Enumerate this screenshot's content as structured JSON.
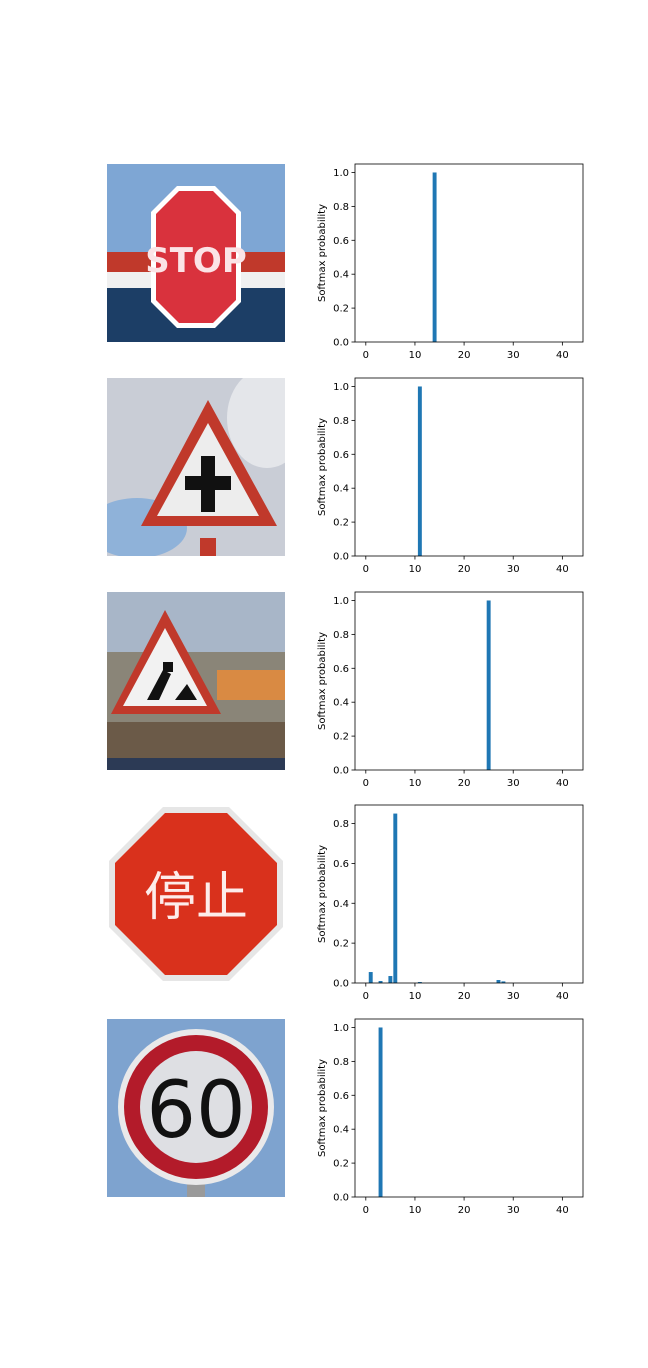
{
  "colors": {
    "bar": "#1f77b4",
    "axis": "#000000"
  },
  "images": [
    {
      "icon": "stop-sign-image"
    },
    {
      "icon": "right-of-way-intersection-sign-image"
    },
    {
      "icon": "road-work-sign-image"
    },
    {
      "icon": "japanese-stop-sign-image",
      "sign_text": "停止"
    },
    {
      "icon": "speed-limit-60-sign-image",
      "sign_text": "60"
    }
  ],
  "chart_data": [
    {
      "type": "bar",
      "ylabel": "Softmax probability",
      "xlim": [
        -2.2,
        44.2
      ],
      "xticks": [
        0,
        10,
        20,
        30,
        40
      ],
      "ylim": [
        0,
        1.05
      ],
      "yticks": [
        "0.0",
        "0.2",
        "0.4",
        "0.6",
        "0.8",
        "1.0"
      ],
      "x": [
        14
      ],
      "values": [
        1.0
      ]
    },
    {
      "type": "bar",
      "ylabel": "Softmax probability",
      "xlim": [
        -2.2,
        44.2
      ],
      "xticks": [
        0,
        10,
        20,
        30,
        40
      ],
      "ylim": [
        0,
        1.05
      ],
      "yticks": [
        "0.0",
        "0.2",
        "0.4",
        "0.6",
        "0.8",
        "1.0"
      ],
      "x": [
        11
      ],
      "values": [
        1.0
      ]
    },
    {
      "type": "bar",
      "ylabel": "Softmax probability",
      "xlim": [
        -2.2,
        44.2
      ],
      "xticks": [
        0,
        10,
        20,
        30,
        40
      ],
      "ylim": [
        0,
        1.05
      ],
      "yticks": [
        "0.0",
        "0.2",
        "0.4",
        "0.6",
        "0.8",
        "1.0"
      ],
      "x": [
        25
      ],
      "values": [
        1.0
      ]
    },
    {
      "type": "bar",
      "ylabel": "Softmax probability",
      "xlim": [
        -2.2,
        44.2
      ],
      "xticks": [
        0,
        10,
        20,
        30,
        40
      ],
      "ylim": [
        0,
        0.893
      ],
      "yticks": [
        "0.0",
        "0.2",
        "0.4",
        "0.6",
        "0.8"
      ],
      "x": [
        1,
        3,
        5,
        6,
        11,
        27,
        28
      ],
      "values": [
        0.055,
        0.01,
        0.035,
        0.85,
        0.005,
        0.015,
        0.008
      ]
    },
    {
      "type": "bar",
      "ylabel": "Softmax probability",
      "xlim": [
        -2.2,
        44.2
      ],
      "xticks": [
        0,
        10,
        20,
        30,
        40
      ],
      "ylim": [
        0,
        1.05
      ],
      "yticks": [
        "0.0",
        "0.2",
        "0.4",
        "0.6",
        "0.8",
        "1.0"
      ],
      "x": [
        3
      ],
      "values": [
        1.0
      ]
    }
  ]
}
